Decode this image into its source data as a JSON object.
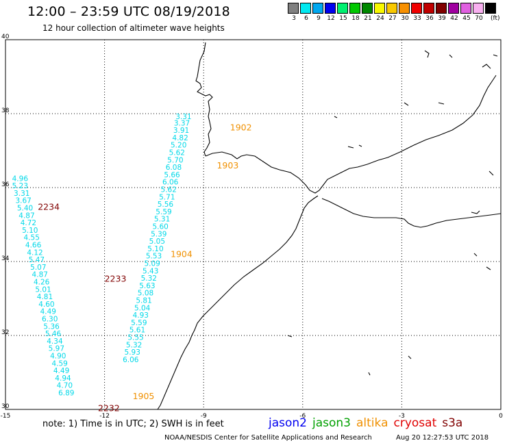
{
  "title": "12:00 – 23:59 UTC 08/19/2018",
  "subtitle": "12 hour collection of altimeter wave heights",
  "legend": {
    "unit": "(ft)",
    "bins": [
      {
        "color": "#808080",
        "label": "3"
      },
      {
        "color": "#00e8f0",
        "label": "6"
      },
      {
        "color": "#00a8f0",
        "label": "9"
      },
      {
        "color": "#0000f0",
        "label": "12"
      },
      {
        "color": "#00f070",
        "label": "15"
      },
      {
        "color": "#00c800",
        "label": "18"
      },
      {
        "color": "#008800",
        "label": "21"
      },
      {
        "color": "#f8f800",
        "label": "24"
      },
      {
        "color": "#f8c800",
        "label": "27"
      },
      {
        "color": "#f89000",
        "label": "30"
      },
      {
        "color": "#f00000",
        "label": "33"
      },
      {
        "color": "#c00000",
        "label": "36"
      },
      {
        "color": "#800000",
        "label": "39"
      },
      {
        "color": "#a000a0",
        "label": "42"
      },
      {
        "color": "#e060e0",
        "label": "45"
      },
      {
        "color": "#f8b0f0",
        "label": "70"
      },
      {
        "color": "#000000",
        "label": ""
      }
    ]
  },
  "map": {
    "lon_ticks": [
      "-15",
      "-12",
      "-9",
      "-6",
      "-3",
      "0"
    ],
    "lat_ticks": [
      "40",
      "38",
      "36",
      "34",
      "32",
      "30"
    ]
  },
  "passes": [
    {
      "label": "1902",
      "color": "#f09000",
      "lon": -8.2,
      "lat": 37.55
    },
    {
      "label": "1903",
      "color": "#f09000",
      "lon": -8.6,
      "lat": 36.52
    },
    {
      "label": "1904",
      "color": "#f09000",
      "lon": -10.0,
      "lat": 34.12
    },
    {
      "label": "1905",
      "color": "#f09000",
      "lon": -11.15,
      "lat": 30.28
    },
    {
      "label": "2232",
      "color": "#800000",
      "lon": -12.2,
      "lat": 29.95
    },
    {
      "label": "2233",
      "color": "#800000",
      "lon": -12.0,
      "lat": 33.45
    },
    {
      "label": "2234",
      "color": "#800000",
      "lon": -14.02,
      "lat": 35.4
    }
  ],
  "track_east": [
    {
      "swh": "3.31",
      "lon": -9.85,
      "lat": 37.85
    },
    {
      "swh": "3.37",
      "lon": -9.9,
      "lat": 37.68
    },
    {
      "swh": "3.91",
      "lon": -9.92,
      "lat": 37.48
    },
    {
      "swh": "4.82",
      "lon": -9.95,
      "lat": 37.28
    },
    {
      "swh": "5.20",
      "lon": -10.0,
      "lat": 37.08
    },
    {
      "swh": "5.62",
      "lon": -10.05,
      "lat": 36.88
    },
    {
      "swh": "5.70",
      "lon": -10.1,
      "lat": 36.68
    },
    {
      "swh": "6.08",
      "lon": -10.15,
      "lat": 36.48
    },
    {
      "swh": "5.66",
      "lon": -10.2,
      "lat": 36.28
    },
    {
      "swh": "6.06",
      "lon": -10.25,
      "lat": 36.08
    },
    {
      "swh": "5.62",
      "lon": -10.3,
      "lat": 35.88
    },
    {
      "swh": "5.71",
      "lon": -10.35,
      "lat": 35.68
    },
    {
      "swh": "5.56",
      "lon": -10.4,
      "lat": 35.48
    },
    {
      "swh": "5.59",
      "lon": -10.45,
      "lat": 35.28
    },
    {
      "swh": "5.31",
      "lon": -10.5,
      "lat": 35.08
    },
    {
      "swh": "5.60",
      "lon": -10.55,
      "lat": 34.88
    },
    {
      "swh": "5.39",
      "lon": -10.6,
      "lat": 34.68
    },
    {
      "swh": "5.05",
      "lon": -10.65,
      "lat": 34.48
    },
    {
      "swh": "5.10",
      "lon": -10.7,
      "lat": 34.28
    },
    {
      "swh": "5.53",
      "lon": -10.75,
      "lat": 34.08
    },
    {
      "swh": "5.09",
      "lon": -10.8,
      "lat": 33.88
    },
    {
      "swh": "5.43",
      "lon": -10.85,
      "lat": 33.68
    },
    {
      "swh": "5.32",
      "lon": -10.9,
      "lat": 33.48
    },
    {
      "swh": "5.63",
      "lon": -10.95,
      "lat": 33.28
    },
    {
      "swh": "5.08",
      "lon": -11.0,
      "lat": 33.08
    },
    {
      "swh": "5.81",
      "lon": -11.05,
      "lat": 32.88
    },
    {
      "swh": "5.04",
      "lon": -11.1,
      "lat": 32.68
    },
    {
      "swh": "4.93",
      "lon": -11.15,
      "lat": 32.48
    },
    {
      "swh": "5.59",
      "lon": -11.2,
      "lat": 32.28
    },
    {
      "swh": "5.61",
      "lon": -11.25,
      "lat": 32.08
    },
    {
      "swh": "5.55",
      "lon": -11.3,
      "lat": 31.88
    },
    {
      "swh": "5.32",
      "lon": -11.35,
      "lat": 31.68
    },
    {
      "swh": "5.93",
      "lon": -11.4,
      "lat": 31.48
    },
    {
      "swh": "6.06",
      "lon": -11.45,
      "lat": 31.28
    }
  ],
  "track_west": [
    {
      "swh": "4.96",
      "lon": -14.8,
      "lat": 36.18
    },
    {
      "swh": "5.23",
      "lon": -14.8,
      "lat": 35.98
    },
    {
      "swh": "3.31",
      "lon": -14.75,
      "lat": 35.78
    },
    {
      "swh": "3.67",
      "lon": -14.7,
      "lat": 35.58
    },
    {
      "swh": "5.40",
      "lon": -14.65,
      "lat": 35.38
    },
    {
      "swh": "4.87",
      "lon": -14.6,
      "lat": 35.18
    },
    {
      "swh": "4.72",
      "lon": -14.55,
      "lat": 34.98
    },
    {
      "swh": "5.10",
      "lon": -14.5,
      "lat": 34.78
    },
    {
      "swh": "4.55",
      "lon": -14.45,
      "lat": 34.58
    },
    {
      "swh": "4.66",
      "lon": -14.4,
      "lat": 34.38
    },
    {
      "swh": "4.12",
      "lon": -14.35,
      "lat": 34.18
    },
    {
      "swh": "5.47",
      "lon": -14.3,
      "lat": 33.98
    },
    {
      "swh": "5.07",
      "lon": -14.25,
      "lat": 33.78
    },
    {
      "swh": "4.87",
      "lon": -14.2,
      "lat": 33.58
    },
    {
      "swh": "4.26",
      "lon": -14.15,
      "lat": 33.38
    },
    {
      "swh": "5.01",
      "lon": -14.1,
      "lat": 33.18
    },
    {
      "swh": "4.81",
      "lon": -14.05,
      "lat": 32.98
    },
    {
      "swh": "4.60",
      "lon": -14.0,
      "lat": 32.78
    },
    {
      "swh": "4.49",
      "lon": -13.95,
      "lat": 32.58
    },
    {
      "swh": "6.30",
      "lon": -13.9,
      "lat": 32.38
    },
    {
      "swh": "5.36",
      "lon": -13.85,
      "lat": 32.18
    },
    {
      "swh": "5.46",
      "lon": -13.8,
      "lat": 31.98
    },
    {
      "swh": "4.34",
      "lon": -13.75,
      "lat": 31.78
    },
    {
      "swh": "5.97",
      "lon": -13.7,
      "lat": 31.58
    },
    {
      "swh": "4.90",
      "lon": -13.65,
      "lat": 31.38
    },
    {
      "swh": "4.59",
      "lon": -13.6,
      "lat": 31.18
    },
    {
      "swh": "4.49",
      "lon": -13.55,
      "lat": 30.98
    },
    {
      "swh": "4.94",
      "lon": -13.5,
      "lat": 30.78
    },
    {
      "swh": "4.70",
      "lon": -13.45,
      "lat": 30.58
    },
    {
      "swh": "6.89",
      "lon": -13.4,
      "lat": 30.38
    }
  ],
  "note": "note: 1) Time is in UTC; 2) SWH is in feet",
  "satellites": [
    {
      "name": "jason2",
      "color": "#0000f0"
    },
    {
      "name": "jason3",
      "color": "#00a000"
    },
    {
      "name": "altika",
      "color": "#f09000"
    },
    {
      "name": "cryosat",
      "color": "#e00000"
    },
    {
      "name": "s3a",
      "color": "#800000"
    }
  ],
  "credit": "NOAA/NESDIS Center for Satellite Applications and Research",
  "timestamp": "Aug 20 12:27:53 UTC 2018"
}
